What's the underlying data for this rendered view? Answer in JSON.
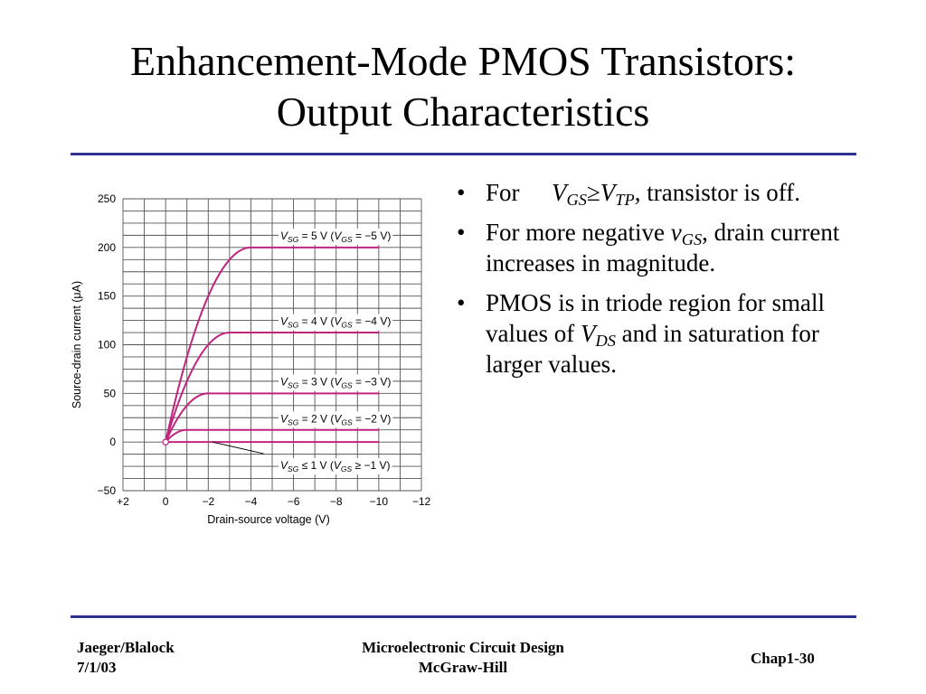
{
  "slide": {
    "title_line1": "Enhancement-Mode PMOS Transistors:",
    "title_line2": "Output Characteristics"
  },
  "colors": {
    "rule": "#2e3192",
    "curve": "#c0247f",
    "grid": "#555555"
  },
  "bullets": [
    {
      "prefix": "For",
      "math_v1": "V",
      "math_s1": "GS",
      "math_op": "≥",
      "math_v2": "V",
      "math_s2": "TP",
      "suffix": ", transistor is off."
    },
    {
      "text1": "For more negative ",
      "math_v": "v",
      "math_s": "GS",
      "text2": ", drain current increases in magnitude."
    },
    {
      "text1": "PMOS is in triode region for small values of ",
      "math_v": "V",
      "math_s": "DS",
      "text2": " and in saturation for larger values."
    }
  ],
  "footer": {
    "left_line1": "Jaeger/Blalock",
    "left_line2": "7/1/03",
    "center_line1": "Microelectronic Circuit Design",
    "center_line2": "McGraw-Hill",
    "right": "Chap1-30"
  },
  "chart_data": {
    "type": "line",
    "title": "",
    "xlabel": "Drain-source voltage (V)",
    "ylabel": "Source-drain current (μA)",
    "xlim": [
      2,
      -12
    ],
    "ylim": [
      -50,
      250
    ],
    "x_tick_labels": [
      "+2",
      "0",
      "−2",
      "−4",
      "−6",
      "−8",
      "−10",
      "−12"
    ],
    "y_tick_labels": [
      "250",
      "200",
      "150",
      "100",
      "50",
      "0",
      "−50"
    ],
    "grid": true,
    "series": [
      {
        "name": "V_SG = 5 V (V_GS = −5 V)",
        "sat_current": 200,
        "vdsat": 4
      },
      {
        "name": "V_SG = 4 V (V_GS = −4 V)",
        "sat_current": 112.5,
        "vdsat": 3
      },
      {
        "name": "V_SG = 3 V (V_GS = −3 V)",
        "sat_current": 50,
        "vdsat": 2
      },
      {
        "name": "V_SG = 2 V (V_GS = −2 V)",
        "sat_current": 12.5,
        "vdsat": 1
      },
      {
        "name": "V_SG ≤ 1 V (V_GS ≥ −1 V)",
        "sat_current": 0,
        "vdsat": 0
      }
    ],
    "labels": [
      {
        "v1": "V",
        "s1": "SG",
        "mid": " = 5 V (",
        "v2": "V",
        "s2": "GS",
        "end": " = −5 V)"
      },
      {
        "v1": "V",
        "s1": "SG",
        "mid": " = 4 V (",
        "v2": "V",
        "s2": "GS",
        "end": " = −4 V)"
      },
      {
        "v1": "V",
        "s1": "SG",
        "mid": " = 3 V (",
        "v2": "V",
        "s2": "GS",
        "end": " = −3 V)"
      },
      {
        "v1": "V",
        "s1": "SG",
        "mid": " = 2 V (",
        "v2": "V",
        "s2": "GS",
        "end": " = −2 V)"
      },
      {
        "v1": "V",
        "s1": "SG",
        "mid": " ≤ 1 V (",
        "v2": "V",
        "s2": "GS",
        "end": " ≥ −1 V)"
      }
    ]
  }
}
